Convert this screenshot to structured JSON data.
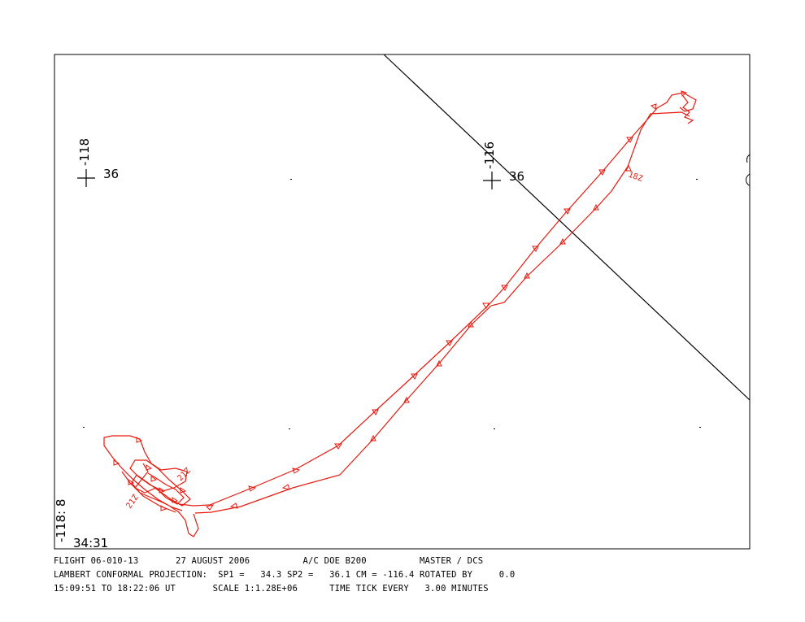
{
  "map": {
    "gridlabels": {
      "lon_left": "-118",
      "lon_right": "-116",
      "lat_left": "36",
      "lat_right": "36",
      "corner_lon": "-118: 8",
      "corner_lat": "34:31"
    },
    "track_labels": [
      "18Z",
      "21Z",
      "21Z"
    ],
    "colors": {
      "track": "#e8190f",
      "frame": "#000000"
    }
  },
  "footer": {
    "line1": "FLIGHT 06-010-13       27 AUGUST 2006          A/C DOE B200          MASTER / DCS",
    "line2": "LAMBERT CONFORMAL PROJECTION:  SP1 =   34.3 SP2 =   36.1 CM = -116.4 ROTATED BY     0.0",
    "line3": "15:09:51 TO 18:22:06 UT       SCALE 1:1.28E+06      TIME TICK EVERY   3.00 MINUTES"
  }
}
